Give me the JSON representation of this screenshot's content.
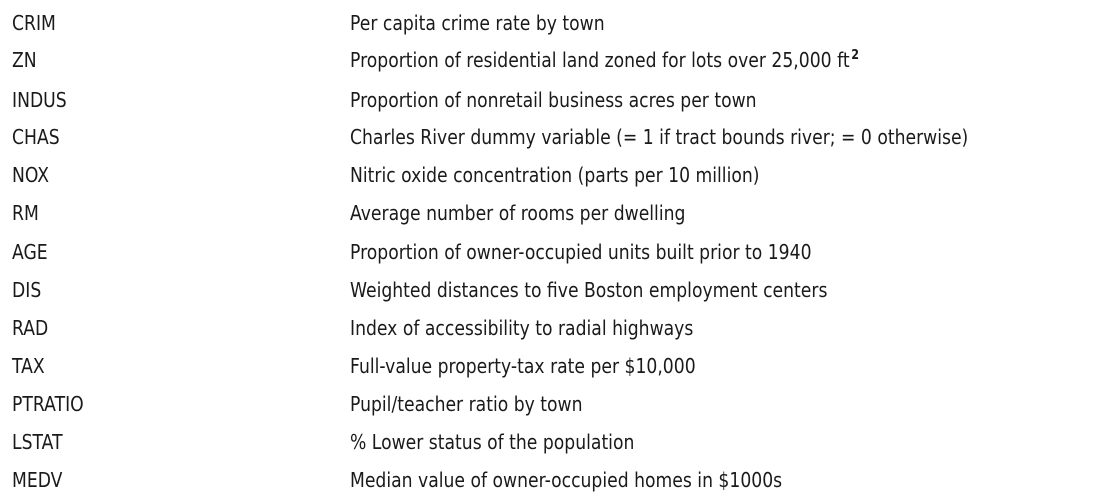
{
  "variables": [
    {
      "name": "CRIM",
      "description": "Per capita crime rate by town"
    },
    {
      "name": "ZN",
      "description": "Proportion of residential land zoned for lots over 25,000 ft",
      "superscript": "2"
    },
    {
      "name": "INDUS",
      "description": "Proportion of nonretail business acres per town"
    },
    {
      "name": "CHAS",
      "description": "Charles River dummy variable (= 1 if tract bounds river; = 0 otherwise)"
    },
    {
      "name": "NOX",
      "description": "Nitric oxide concentration (parts per 10 million)"
    },
    {
      "name": "RM",
      "description": "Average number of rooms per dwelling"
    },
    {
      "name": "AGE",
      "description": "Proportion of owner-occupied units built prior to 1940"
    },
    {
      "name": "DIS",
      "description": "Weighted distances to five Boston employment centers"
    },
    {
      "name": "RAD",
      "description": "Index of accessibility to radial highways"
    },
    {
      "name": "TAX",
      "description": "Full-value property-tax rate per $10,000"
    },
    {
      "name": "PTRATIO",
      "description": "Pupil/teacher ratio by town"
    },
    {
      "name": "LSTAT",
      "description": "% Lower status of the population"
    },
    {
      "name": "MEDV",
      "description": "Median value of owner-occupied homes in $1000s"
    }
  ]
}
